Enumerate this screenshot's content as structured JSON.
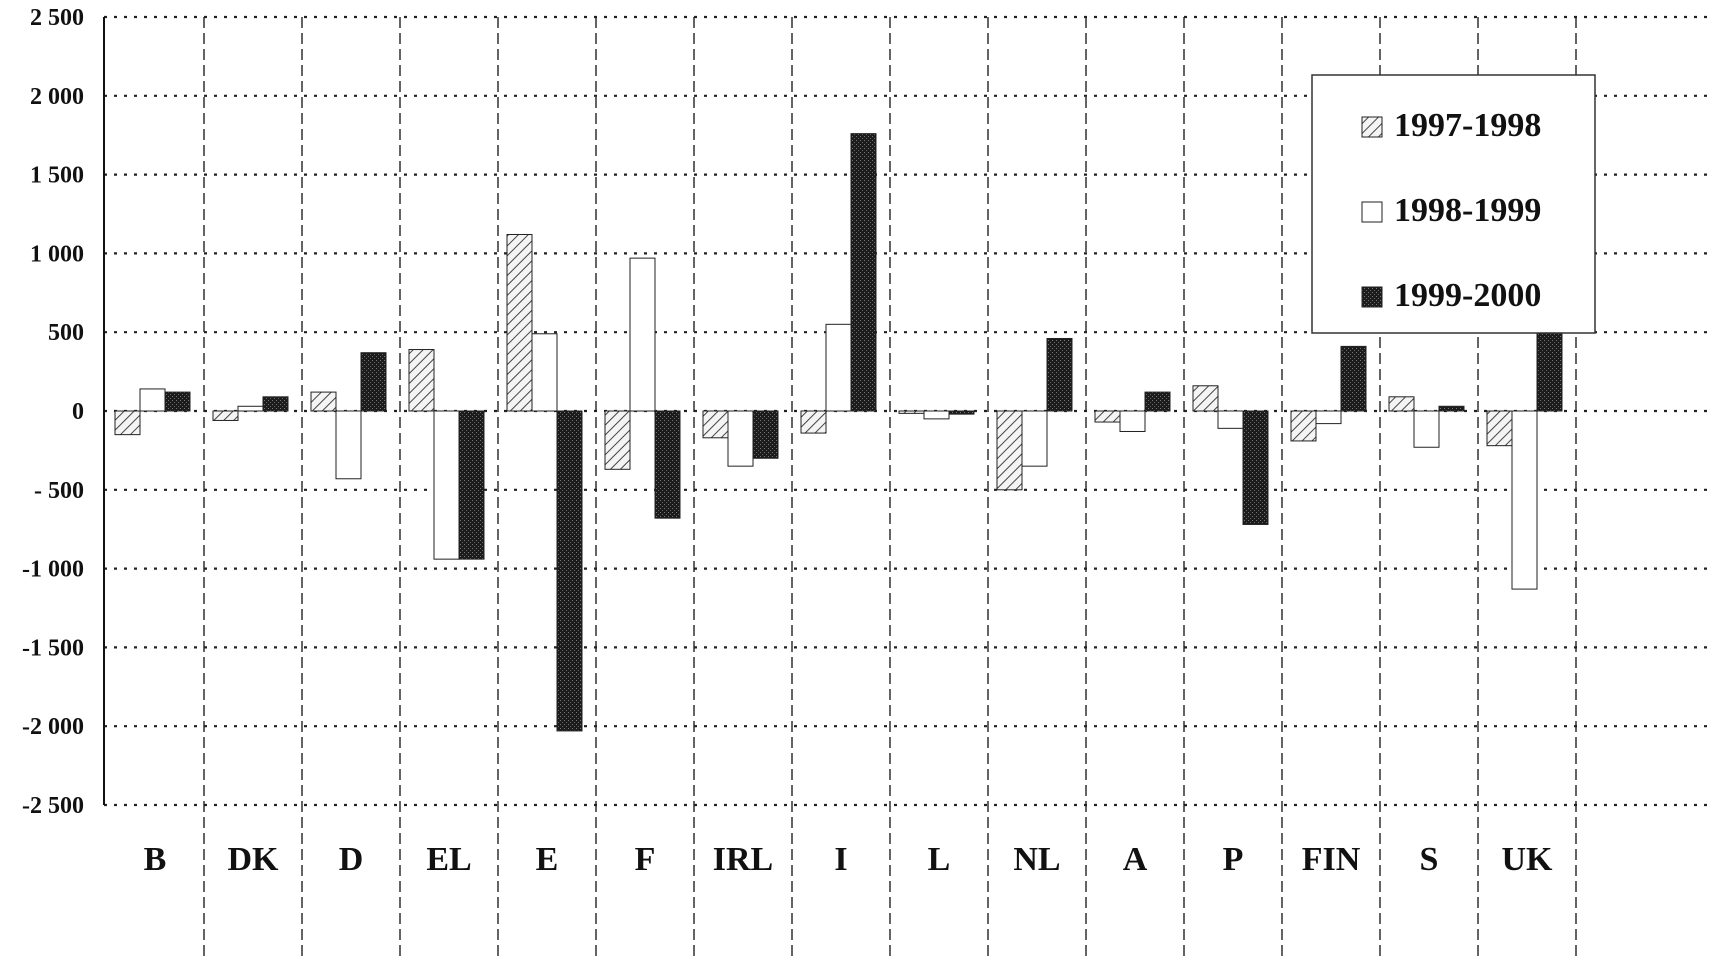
{
  "chart_data": {
    "type": "bar",
    "categories": [
      "B",
      "DK",
      "D",
      "EL",
      "E",
      "F",
      "IRL",
      "I",
      "L",
      "NL",
      "A",
      "P",
      "FIN",
      "S",
      "UK"
    ],
    "series": [
      {
        "name": "1997-1998",
        "values": [
          -150,
          -60,
          120,
          390,
          1120,
          -370,
          -170,
          -140,
          -15,
          -500,
          -70,
          160,
          -190,
          90,
          -220
        ],
        "pattern": "hatch"
      },
      {
        "name": "1998-1999",
        "values": [
          140,
          30,
          -430,
          -940,
          490,
          970,
          -350,
          550,
          -50,
          -350,
          -130,
          -110,
          -80,
          -230,
          -1130
        ],
        "pattern": "white"
      },
      {
        "name": "1999-2000",
        "values": [
          120,
          90,
          370,
          -940,
          -2030,
          -680,
          -300,
          1760,
          -20,
          460,
          120,
          -720,
          410,
          30,
          1900
        ],
        "pattern": "dark"
      }
    ],
    "yticks": [
      "2 500",
      "2 000",
      "1 500",
      "1 000",
      "500",
      "0",
      "- 500",
      "-1 000",
      "-1 500",
      "-2 000",
      "-2 500"
    ],
    "ylim": [
      -2500,
      2500
    ],
    "grid": true,
    "legend_position": "top-right",
    "title": "",
    "xlabel": "",
    "ylabel": ""
  }
}
